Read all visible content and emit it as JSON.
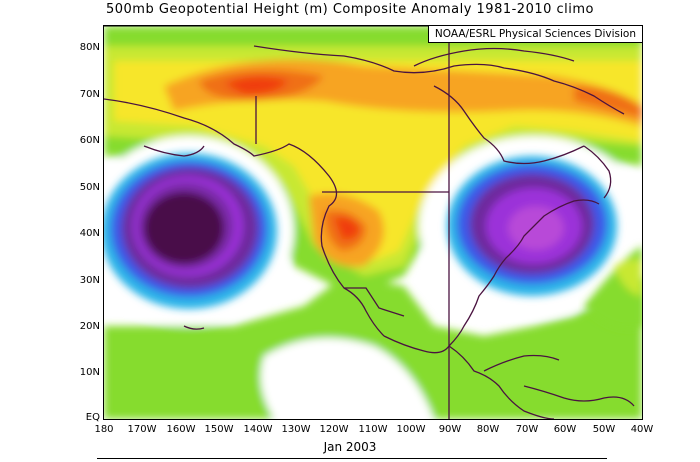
{
  "title": "500mb Geopotential Height (m) Composite Anomaly 1981-2010 climo",
  "credit": "NOAA/ESRL Physical Sciences Division",
  "date_label": "Jan 2003",
  "lat_labels": [
    "80N",
    "70N",
    "60N",
    "50N",
    "40N",
    "30N",
    "20N",
    "10N",
    "EQ"
  ],
  "lon_labels": [
    "180",
    "170W",
    "160W",
    "150W",
    "140W",
    "130W",
    "120W",
    "110W",
    "100W",
    "90W",
    "80W",
    "70W",
    "60W",
    "50W",
    "40W"
  ],
  "colors": {
    "deep_low": "#4a0a4a",
    "low_purple": "#6e2b9e",
    "low_violet": "#9b30d9",
    "low_blue": "#3c58e8",
    "low_cyan": "#29b4e8",
    "neutral": "#ffffff",
    "green": "#86dc2e",
    "yellow_green": "#c8e832",
    "yellow": "#f7e62a",
    "orange": "#f7a420",
    "deep_orange": "#f07018",
    "red": "#f03c10",
    "coast": "#4a1340"
  }
}
